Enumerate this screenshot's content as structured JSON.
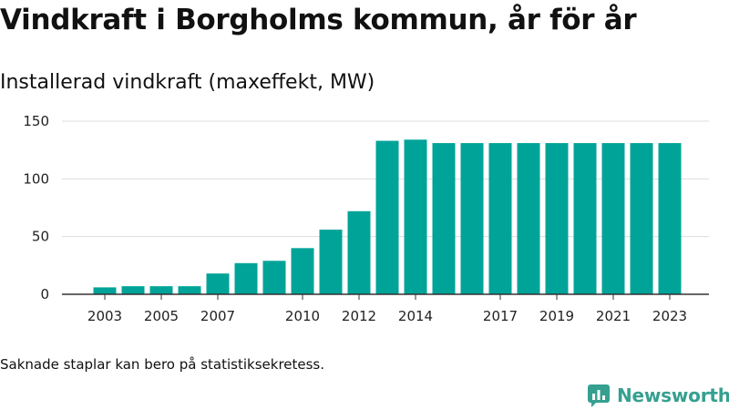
{
  "title": "Vindkraft i Borgholms kommun, år för år",
  "subtitle": "Installerad vindkraft (maxeffekt, MW)",
  "note": "Saknade staplar kan bero på statistiksekretess.",
  "brand": {
    "name": "Newsworthy",
    "color": "#35a08f",
    "icon": "newsworthy-logo-icon"
  },
  "colors": {
    "bar": "#00a398",
    "grid": "#dddddd",
    "axis": "#333333"
  },
  "chart_data": {
    "type": "bar",
    "x": [
      2003,
      2004,
      2005,
      2006,
      2007,
      2008,
      2009,
      2010,
      2011,
      2012,
      2013,
      2014,
      2015,
      2016,
      2017,
      2018,
      2019,
      2020,
      2021,
      2022,
      2023
    ],
    "values": [
      6,
      7,
      7,
      7,
      18,
      27,
      29,
      40,
      56,
      72,
      133,
      134,
      131,
      131,
      131,
      131,
      131,
      131,
      131,
      131,
      131
    ],
    "x_tick_labels": [
      "2003",
      "2005",
      "2007",
      "2010",
      "2012",
      "2014",
      "2017",
      "2019",
      "2021",
      "2023"
    ],
    "y_ticks": [
      0,
      50,
      100,
      150
    ],
    "ylim": [
      0,
      150
    ],
    "xlabel": "",
    "ylabel": "",
    "grid": true,
    "legend": "none"
  }
}
